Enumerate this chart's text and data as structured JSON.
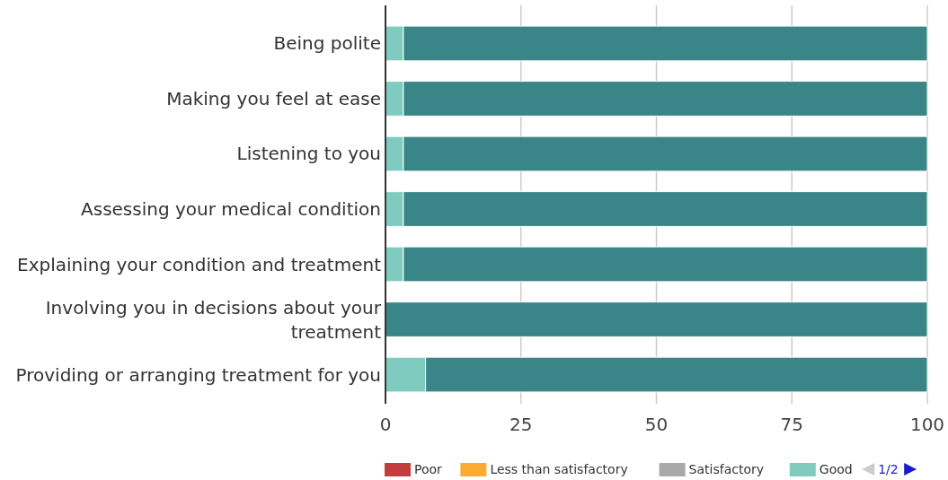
{
  "chart_data": {
    "type": "bar",
    "orientation": "horizontal",
    "stacked": true,
    "categories": [
      "Being polite",
      "Making you feel at ease",
      "Listening to you",
      "Assessing your medical condition",
      "Explaining your condition and treatment",
      "Involving you in decisions about your treatment",
      "Providing or arranging treatment for you"
    ],
    "series": [
      {
        "name": "Poor",
        "color": "#c43c3c",
        "values": [
          0,
          0,
          0,
          0,
          0,
          0,
          0
        ]
      },
      {
        "name": "Less than satisfactory",
        "color": "#ffab33",
        "values": [
          0,
          0,
          0,
          0,
          0,
          0,
          0
        ]
      },
      {
        "name": "Satisfactory",
        "color": "#a9a9a9",
        "values": [
          0,
          0,
          0,
          0,
          0,
          0,
          0
        ]
      },
      {
        "name": "Good",
        "color": "#80cbc0",
        "values": [
          3.3,
          3.3,
          3.3,
          3.3,
          3.3,
          0,
          7.4
        ]
      },
      {
        "color": "#3a8588",
        "values": [
          96.7,
          96.7,
          96.7,
          96.7,
          96.7,
          100,
          92.6
        ]
      }
    ],
    "xlim": [
      0,
      100
    ],
    "xticks": [
      0,
      25,
      50,
      75,
      100
    ],
    "grid": "x",
    "legend": "bottom",
    "annotations": [
      "1/2"
    ]
  }
}
